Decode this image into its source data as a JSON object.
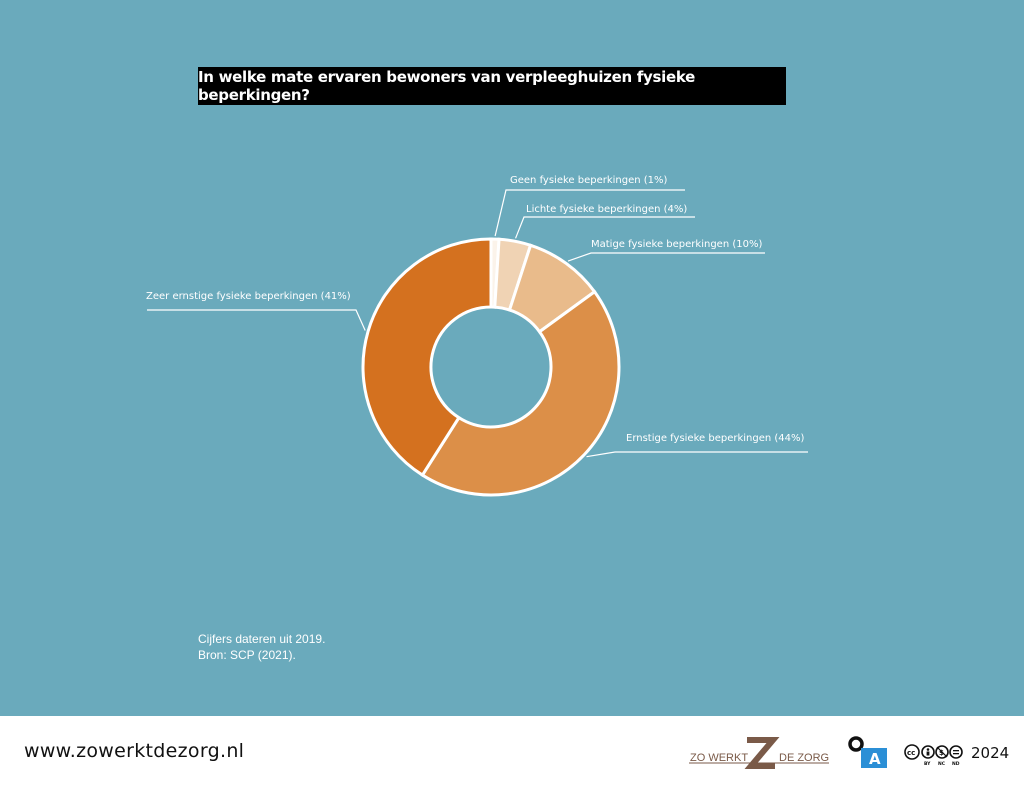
{
  "title": "In welke mate ervaren bewoners van verpleeghuizen fysieke beperkingen?",
  "notes": {
    "line1": "Cijfers dateren uit 2019.",
    "line2": "Bron: SCP (2021)."
  },
  "footer": {
    "url": "www.zowerktdezorg.nl",
    "logo_left": "ZO WERKT",
    "logo_right": "DE ZORG",
    "oa_label": "A",
    "cc_labels": [
      "BY",
      "NC",
      "ND"
    ],
    "year": "2024"
  },
  "colors": {
    "background": "#6aaabc",
    "footer_bg": "#ffffff",
    "title_bg": "#000000",
    "logo_brown": "#7a5a48",
    "oa_blue": "#2b8fd6"
  },
  "chart_data": {
    "type": "pie",
    "donut": true,
    "start": "top, clockwise",
    "slices": [
      {
        "label": "Geen fysieke beperkingen (1%)",
        "value": 1,
        "color": "#fbf3ea"
      },
      {
        "label": "Lichte fysieke beperkingen (4%)",
        "value": 4,
        "color": "#f0d3b4"
      },
      {
        "label": "Matige fysieke beperkingen (10%)",
        "value": 10,
        "color": "#e9bb8b"
      },
      {
        "label": "Ernstige fysieke beperkingen (44%)",
        "value": 44,
        "color": "#dc8f48"
      },
      {
        "label": "Zeer ernstige fysieke beperkingen (41%)",
        "value": 41,
        "color": "#d4711f"
      }
    ]
  }
}
